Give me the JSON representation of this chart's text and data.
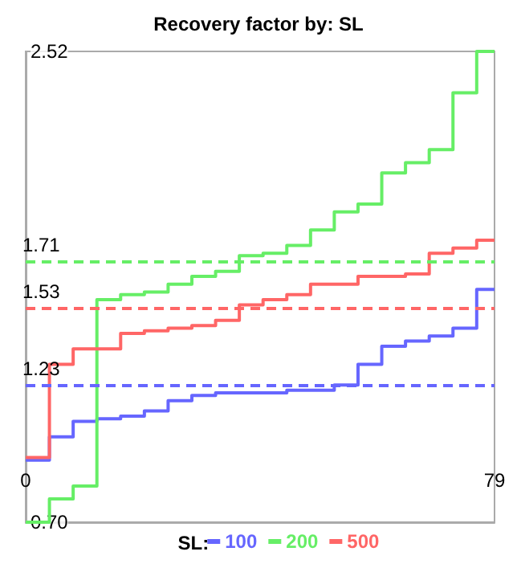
{
  "chart_data": {
    "type": "step",
    "title": "Recovery factor by: SL",
    "legend_title": "SL:",
    "legend": "bottom",
    "grid": false,
    "marker": "none",
    "line_style": "solid",
    "x": [
      0,
      4,
      8,
      12,
      16,
      20,
      24,
      28,
      32,
      36,
      40,
      44,
      48,
      52,
      56,
      60,
      64,
      68,
      72,
      76,
      79
    ],
    "xlim": [
      0,
      79
    ],
    "xticks": [
      0,
      79
    ],
    "ylim": [
      0.7,
      2.52
    ],
    "yticks": [
      {
        "value": 0.7,
        "label": "0.70"
      },
      {
        "value": 2.52,
        "label": "2.52"
      }
    ],
    "series": [
      {
        "name": "100",
        "color": "#6666ff",
        "values": [
          0.94,
          1.03,
          1.09,
          1.1,
          1.11,
          1.13,
          1.17,
          1.19,
          1.2,
          1.2,
          1.2,
          1.21,
          1.21,
          1.23,
          1.31,
          1.38,
          1.4,
          1.42,
          1.45,
          1.6,
          1.6
        ]
      },
      {
        "name": "200",
        "color": "#66ee66",
        "values": [
          0.7,
          0.79,
          0.84,
          1.56,
          1.58,
          1.59,
          1.62,
          1.65,
          1.67,
          1.73,
          1.74,
          1.77,
          1.83,
          1.9,
          1.93,
          2.05,
          2.09,
          2.14,
          2.36,
          2.52,
          2.52
        ]
      },
      {
        "name": "500",
        "color": "#ff6666",
        "values": [
          0.95,
          1.31,
          1.37,
          1.37,
          1.43,
          1.44,
          1.45,
          1.46,
          1.48,
          1.54,
          1.56,
          1.58,
          1.62,
          1.62,
          1.65,
          1.65,
          1.66,
          1.74,
          1.76,
          1.79,
          1.79
        ]
      }
    ],
    "ref_lines": [
      {
        "axis": "y",
        "value": 1.71,
        "label": "1.71",
        "color": "#66ee66",
        "line_style": "dashed"
      },
      {
        "axis": "y",
        "value": 1.53,
        "label": "1.53",
        "color": "#ff6666",
        "line_style": "dashed"
      },
      {
        "axis": "y",
        "value": 1.23,
        "label": "1.23",
        "color": "#6666ff",
        "line_style": "dashed"
      }
    ]
  }
}
